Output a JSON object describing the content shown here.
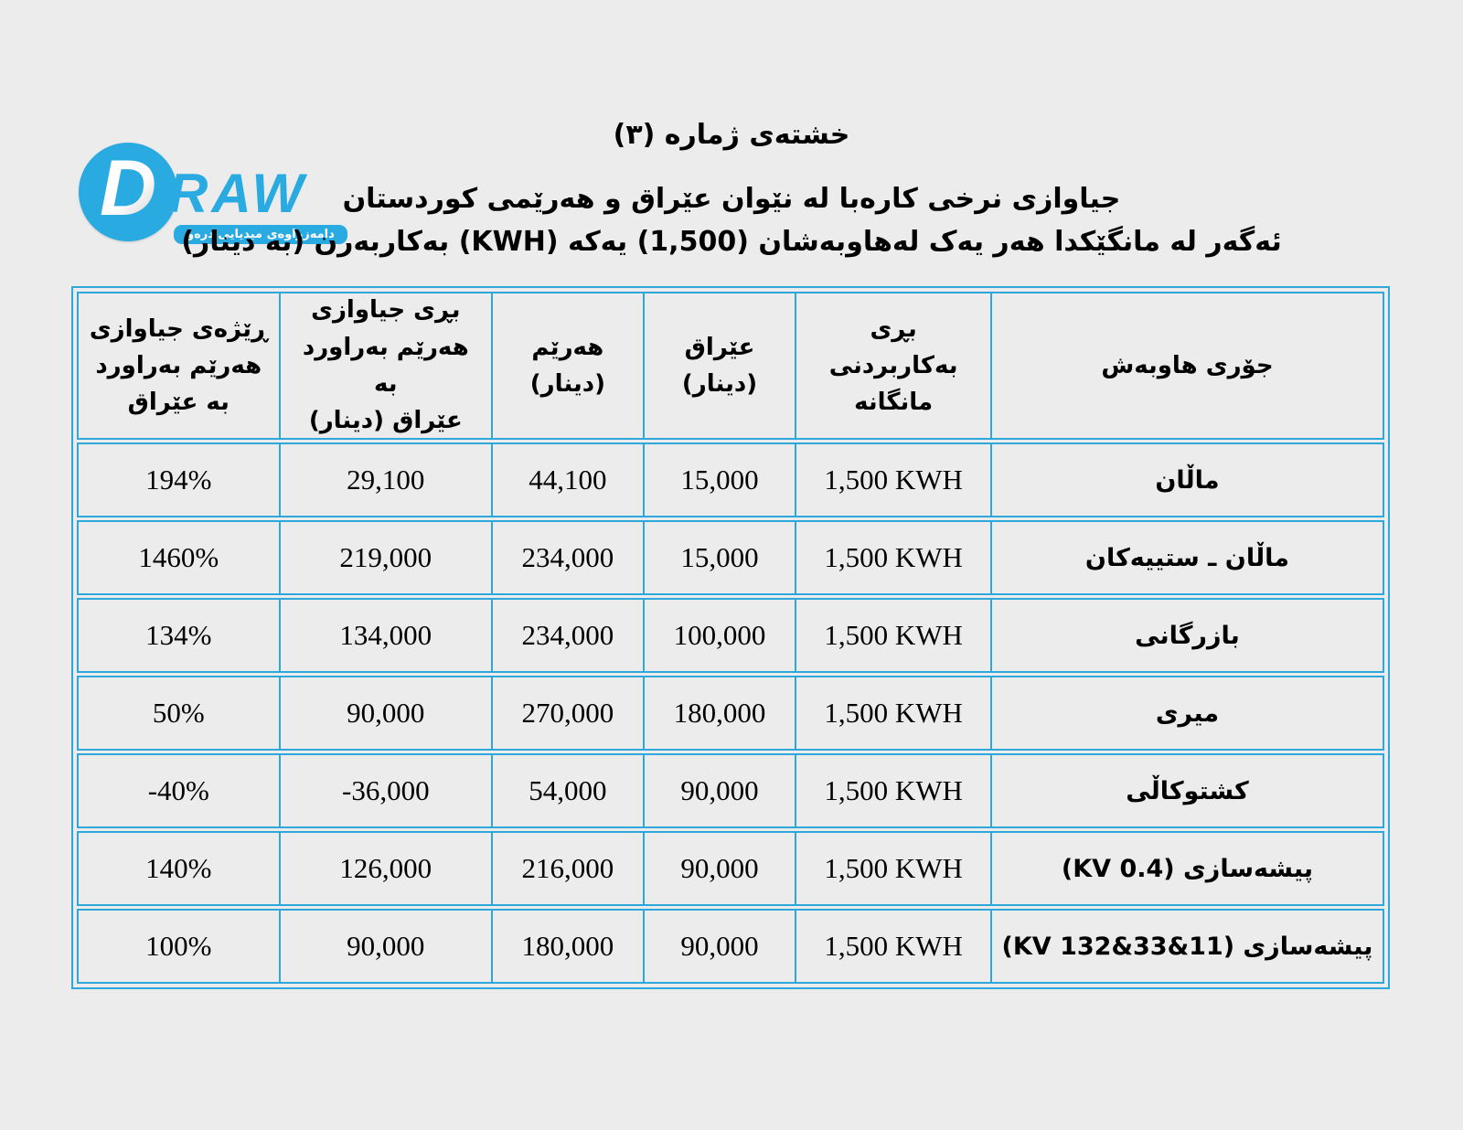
{
  "page": {
    "background": "#ECECEC",
    "accent_blue": "#2EA7DB"
  },
  "logo": {
    "circle_letter": "D",
    "wordmark": "RAW",
    "banner": "دامەزراوەی میدیایی درەو",
    "color": "#29ABE2"
  },
  "titles": {
    "line1": "خشتەی ژماره (٣)",
    "line2": "جیاوازی نرخی کارەبا له نێوان عێراق و هەرێمی کوردستان",
    "line3": "ئەگەر له مانگێکدا هەر یەک لەهاوبەشان (1,500) یەکە (KWH) بەکاربەرن (به دینار)"
  },
  "table": {
    "border_color": "#2EA7DB",
    "headers": [
      "جۆری هاوبەش",
      "بڕی بەکاربردنی\nمانگانه",
      "عێراق\n(دینار)",
      "هەرێم\n(دینار)",
      "بڕی جیاوازی\nهەرێم بەراورد به\nعێراق (دینار)",
      "ڕێژەی جیاوازی\nهەرێم بەراورد\nبه عێراق"
    ],
    "rows": [
      {
        "type": "ماڵان",
        "kwh": "1,500 KWH",
        "iraq": "15,000",
        "region": "44,100",
        "diff": "29,100",
        "pct": "194%"
      },
      {
        "type": "ماڵان ـ ستییەکان",
        "kwh": "1,500 KWH",
        "iraq": "15,000",
        "region": "234,000",
        "diff": "219,000",
        "pct": "1460%"
      },
      {
        "type": "بازرگانی",
        "kwh": "1,500 KWH",
        "iraq": "100,000",
        "region": "234,000",
        "diff": "134,000",
        "pct": "134%"
      },
      {
        "type": "میری",
        "kwh": "1,500 KWH",
        "iraq": "180,000",
        "region": "270,000",
        "diff": "90,000",
        "pct": "50%"
      },
      {
        "type": "کشتوکاڵی",
        "kwh": "1,500 KWH",
        "iraq": "90,000",
        "region": "54,000",
        "diff": "-36,000",
        "pct": "-40%"
      },
      {
        "type": "پیشەسازی (0.4 KV)",
        "kwh": "1,500 KWH",
        "iraq": "90,000",
        "region": "216,000",
        "diff": "126,000",
        "pct": "140%"
      },
      {
        "type": "پیشەسازی (11&33&132 KV)",
        "kwh": "1,500 KWH",
        "iraq": "90,000",
        "region": "180,000",
        "diff": "90,000",
        "pct": "100%"
      }
    ]
  },
  "chart_data": {
    "type": "table",
    "title": "خشتەی ژماره (٣)",
    "subtitle": "جیاوازی نرخی کارەبا له نێوان عێراق و هەرێمی کوردستان — ئەگەر له مانگێکدا هەر یەک لەهاوبەشان (1,500) یەکە (KWH) بەکاربەرن (به دینار)",
    "columns": [
      "جۆری هاوبەش",
      "بڕی بەکاربردنی مانگانه",
      "عێراق (دینار)",
      "هەرێم (دینار)",
      "بڕی جیاوازی هەرێم بەراورد به عێراق (دینار)",
      "ڕێژەی جیاوازی هەرێم بەراورد به عێراق"
    ],
    "rows": [
      [
        "ماڵان",
        "1,500 KWH",
        15000,
        44100,
        29100,
        "194%"
      ],
      [
        "ماڵان ـ ستییەکان",
        "1,500 KWH",
        15000,
        234000,
        219000,
        "1460%"
      ],
      [
        "بازرگانی",
        "1,500 KWH",
        100000,
        234000,
        134000,
        "134%"
      ],
      [
        "میری",
        "1,500 KWH",
        180000,
        270000,
        90000,
        "50%"
      ],
      [
        "کشتوکاڵی",
        "1,500 KWH",
        90000,
        54000,
        -36000,
        "-40%"
      ],
      [
        "پیشەسازی (0.4 KV)",
        "1,500 KWH",
        90000,
        216000,
        126000,
        "140%"
      ],
      [
        "پیشەسازی (11&33&132 KV)",
        "1,500 KWH",
        90000,
        180000,
        90000,
        "100%"
      ]
    ]
  }
}
